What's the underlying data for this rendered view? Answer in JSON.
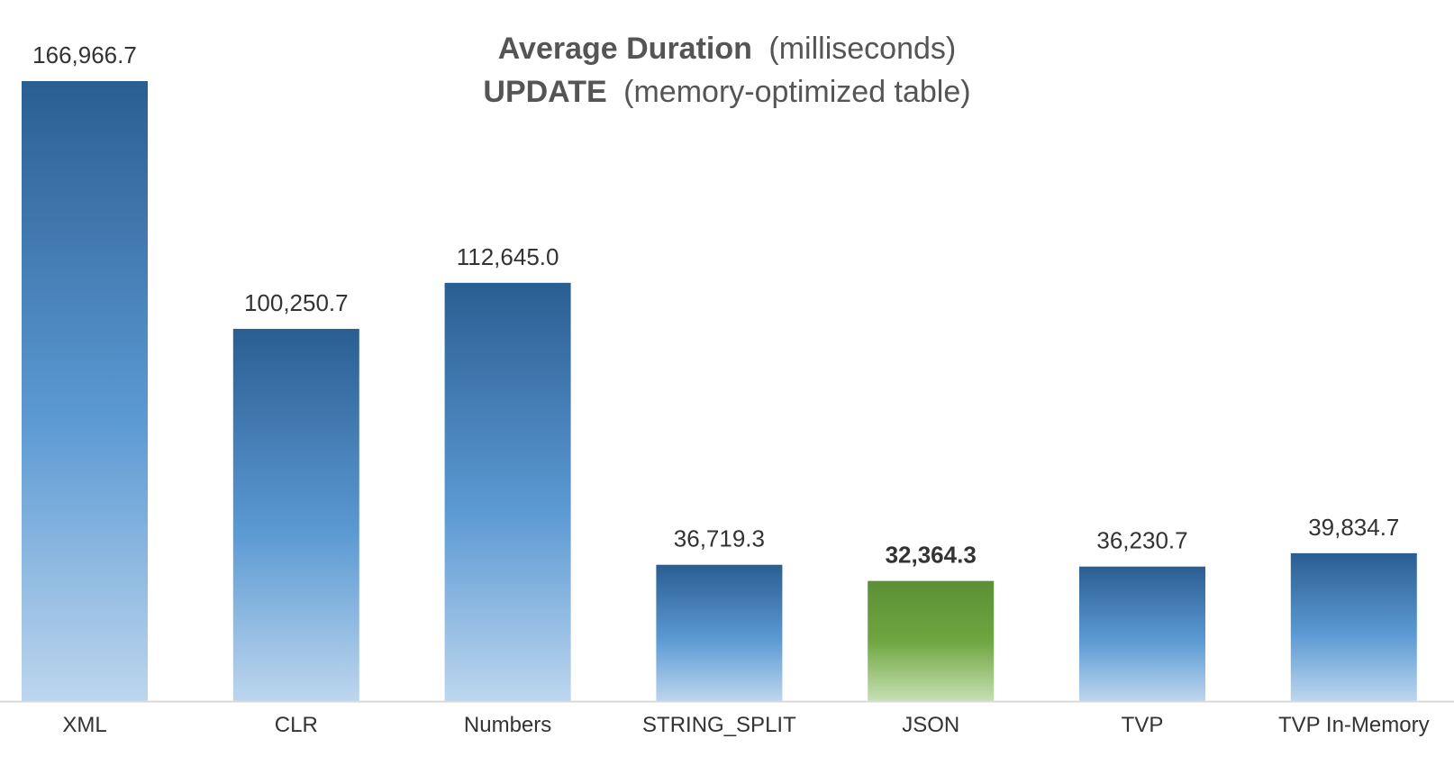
{
  "title": {
    "line1_bold": "Average Duration",
    "line1_rest": "(milliseconds)",
    "line2_bold": "UPDATE",
    "line2_rest": "(memory-optimized table)"
  },
  "colors": {
    "bar_top": "#2A5E92",
    "bar_mid": "#5C9AD3",
    "bar_bottom": "#BDD6EE",
    "highlight_top": "#5B8F36",
    "highlight_mid": "#6FA640",
    "highlight_bottom": "#C6E0B4",
    "highlight_label": "#1AA34A",
    "axis": "#D9D9D9"
  },
  "chart_data": {
    "type": "bar",
    "categories": [
      "XML",
      "CLR",
      "Numbers",
      "STRING_SPLIT",
      "JSON",
      "TVP",
      "TVP In-Memory"
    ],
    "values": [
      166966.7,
      100250.7,
      112645.0,
      36719.3,
      32364.3,
      36230.7,
      39834.7
    ],
    "data_labels": [
      "166,966.7",
      "100,250.7",
      "112,645.0",
      "36,719.3",
      "32,364.3",
      "36,230.7",
      "39,834.7"
    ],
    "highlight": [
      "JSON"
    ],
    "ylim": [
      0,
      166966.7
    ],
    "xlabel": "",
    "ylabel": "",
    "grid": false,
    "legend": "none"
  }
}
